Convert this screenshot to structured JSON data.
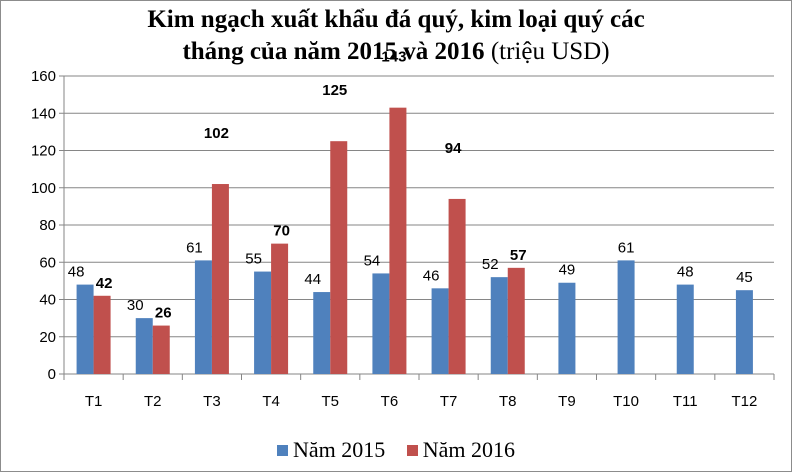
{
  "chart_data": {
    "type": "bar",
    "title_main": "Kim ngạch xuất khẩu đá quý, kim loại quý các",
    "title_line2": "tháng của năm 2015 và 2016",
    "title_unit": "(triệu USD)",
    "categories": [
      "T1",
      "T2",
      "T3",
      "T4",
      "T5",
      "T6",
      "T7",
      "T8",
      "T9",
      "T10",
      "T11",
      "T12"
    ],
    "series": [
      {
        "name": "Năm 2015",
        "color": "#4f81bd",
        "values": [
          48,
          30,
          61,
          55,
          44,
          54,
          46,
          52,
          49,
          61,
          48,
          45
        ]
      },
      {
        "name": "Năm 2016",
        "color": "#c0504d",
        "values": [
          42,
          26,
          102,
          70,
          125,
          143,
          94,
          57,
          null,
          null,
          null,
          null
        ]
      }
    ],
    "ylim": [
      0,
      160
    ],
    "yticks": [
      0,
      20,
      40,
      60,
      80,
      100,
      120,
      140,
      160
    ],
    "grid": true,
    "legend_position": "bottom"
  }
}
